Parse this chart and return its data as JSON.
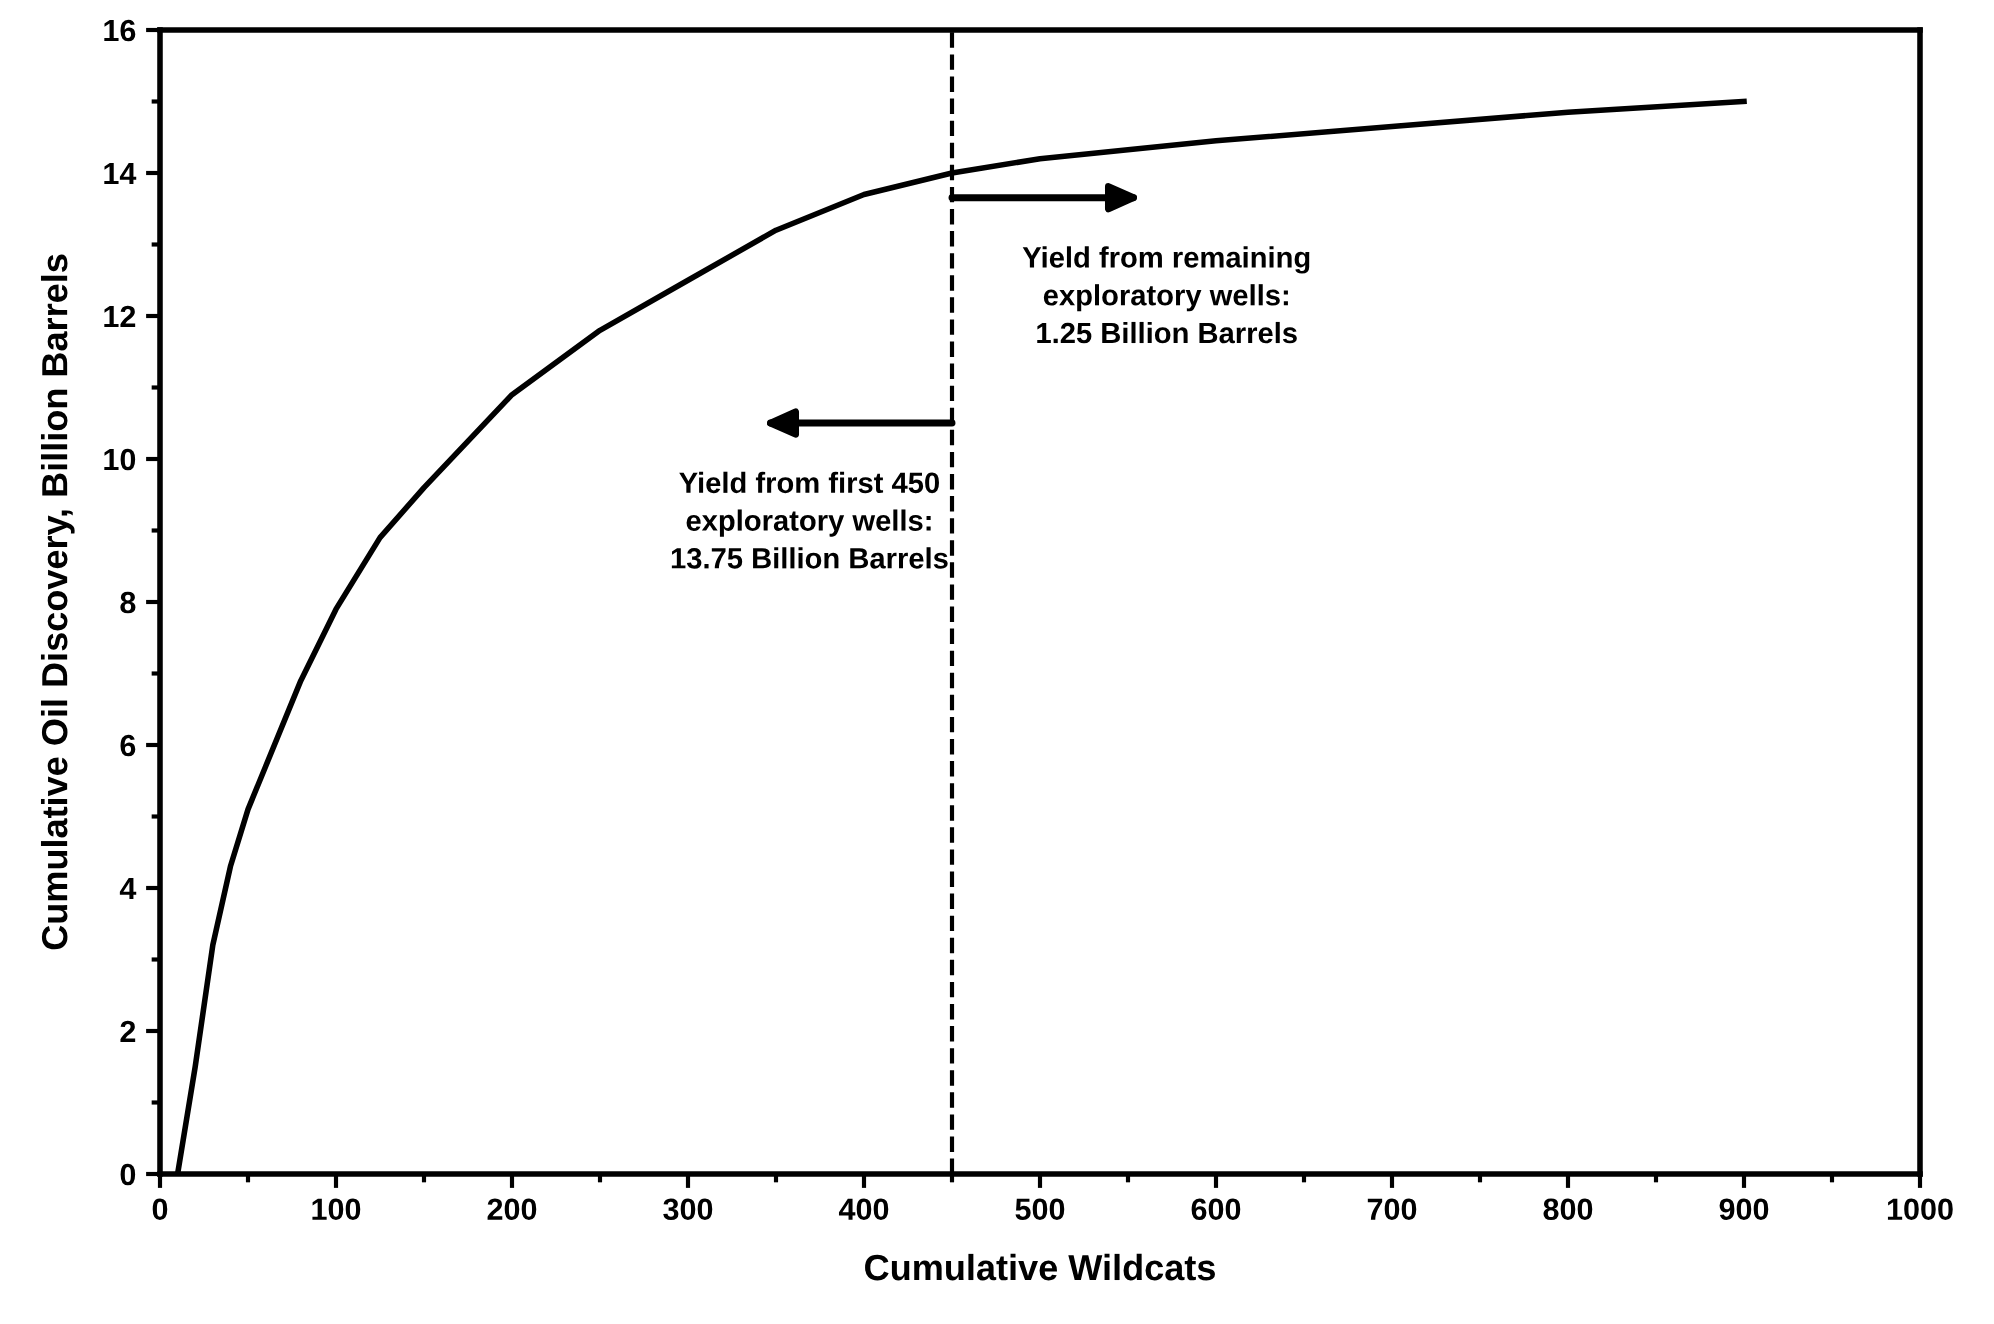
{
  "chart_data": {
    "type": "line",
    "xlabel": "Cumulative Wildcats",
    "ylabel": "Cumulative Oil Discovery, Billion Barrels",
    "x": [
      10,
      20,
      30,
      40,
      50,
      60,
      80,
      100,
      125,
      150,
      200,
      250,
      300,
      350,
      400,
      450,
      500,
      600,
      700,
      800,
      900
    ],
    "series": [
      {
        "color": "#000000",
        "values": [
          0,
          1.5,
          3.2,
          4.3,
          5.1,
          5.7,
          6.9,
          7.9,
          8.9,
          9.6,
          10.9,
          11.8,
          12.5,
          13.2,
          13.7,
          14.0,
          14.2,
          14.45,
          14.65,
          14.85,
          15.0
        ]
      }
    ],
    "xlim": [
      0,
      1000
    ],
    "xticks": [
      0,
      100,
      200,
      300,
      400,
      500,
      600,
      700,
      800,
      900,
      1000
    ],
    "ylim": [
      0,
      16
    ],
    "yticks": [
      0,
      2,
      4,
      6,
      8,
      10,
      12,
      14,
      16
    ],
    "grid": false,
    "legend": false,
    "marker": "none",
    "line_style": "solid",
    "ref_lines": [
      {
        "axis": "x",
        "value": 450,
        "color": "#000000",
        "line_style": "dashed"
      }
    ],
    "annotations": [
      "Yield from first 450\nexploratory wells:\n13.75 Billion Barrels",
      "Yield from remaining\nexploratory wells:\n1.25 Billion Barrels"
    ]
  }
}
